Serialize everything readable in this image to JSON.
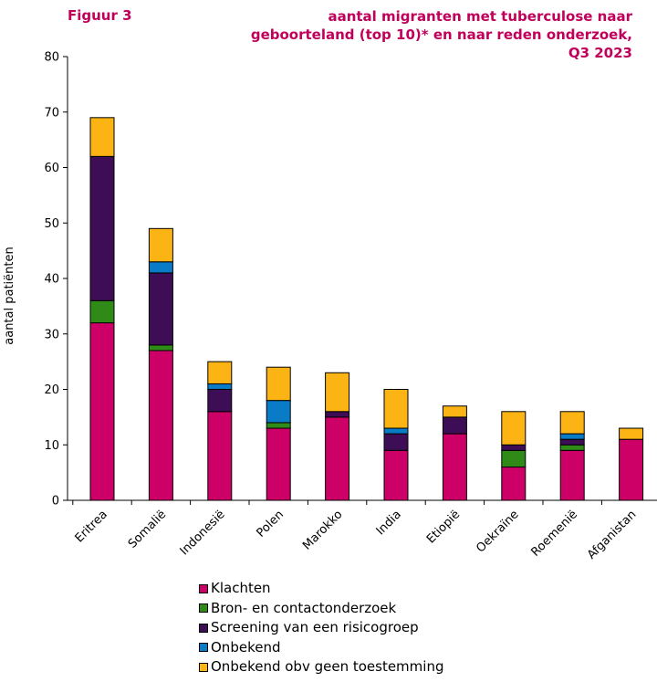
{
  "figure_label": "Figuur 3",
  "title_lines": [
    "aantal migranten met tuberculose naar",
    "geboorteland (top 10)* en naar reden onderzoek,",
    "Q3 2023"
  ],
  "colors": {
    "title": "#c0005a",
    "series": [
      "#cc0066",
      "#2f8a17",
      "#3d0e56",
      "#0a7bc7",
      "#fcb415"
    ]
  },
  "chart_data": {
    "type": "bar",
    "stacked": true,
    "title": "aantal migranten met tuberculose naar geboorteland (top 10)* en naar reden onderzoek, Q3 2023",
    "xlabel": "",
    "ylabel": "aantal patiënten",
    "ylim": [
      0,
      80
    ],
    "yticks": [
      0,
      10,
      20,
      30,
      40,
      50,
      60,
      70,
      80
    ],
    "grid": false,
    "legend_position": "bottom",
    "categories": [
      "Eritrea",
      "Somalië",
      "Indonesië",
      "Polen",
      "Marokko",
      "India",
      "Etiopië",
      "Oekraïne",
      "Roemenië",
      "Afganistan"
    ],
    "series": [
      {
        "name": "Klachten",
        "values": [
          32,
          27,
          16,
          13,
          15,
          9,
          12,
          6,
          9,
          11
        ]
      },
      {
        "name": "Bron- en contactonderzoek",
        "values": [
          4,
          1,
          0,
          1,
          0,
          0,
          0,
          3,
          1,
          0
        ]
      },
      {
        "name": "Screening van een risicogroep",
        "values": [
          26,
          13,
          4,
          0,
          1,
          3,
          3,
          1,
          1,
          0
        ]
      },
      {
        "name": "Onbekend",
        "values": [
          0,
          2,
          1,
          4,
          0,
          1,
          0,
          0,
          1,
          0
        ]
      },
      {
        "name": "Onbekend obv geen toestemming",
        "values": [
          7,
          6,
          4,
          6,
          7,
          7,
          2,
          6,
          4,
          2
        ]
      }
    ]
  }
}
